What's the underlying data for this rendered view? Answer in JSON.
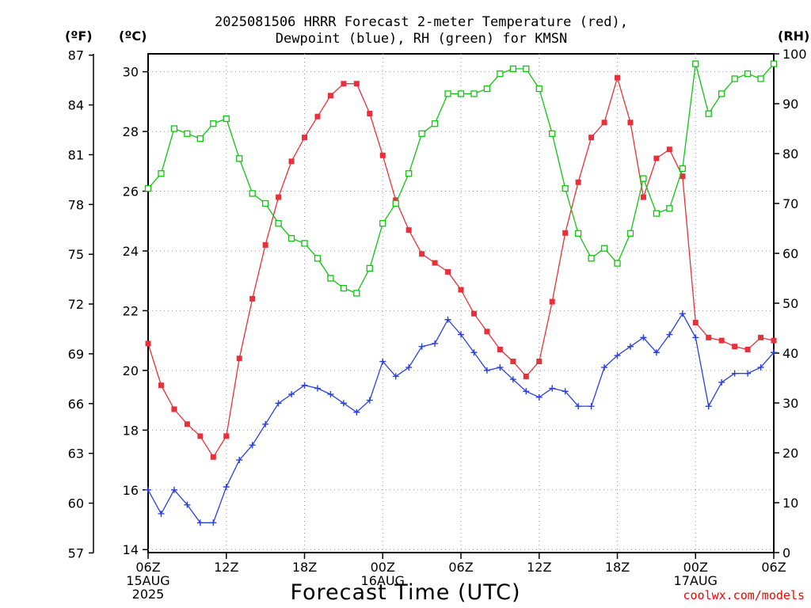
{
  "title_line1": "2025081506 HRRR Forecast 2-meter Temperature (red),",
  "title_line2": "Dewpoint (blue), RH (green) for KMSN",
  "units": {
    "left_f": "(ºF)",
    "left_c": "(ºC)",
    "right_rh": "(RH)"
  },
  "credit": "coolwx.com/models",
  "colors": {
    "temperature": "#e8303a",
    "dewpoint": "#2a3fe0",
    "rh": "#10c410"
  },
  "chart_data": {
    "type": "line",
    "title": "2025081506 HRRR Forecast 2-meter Temperature (red), Dewpoint (blue), RH (green) for KMSN",
    "xlabel": "Forecast Time (UTC)",
    "x": [
      0,
      1,
      2,
      3,
      4,
      5,
      6,
      7,
      8,
      9,
      10,
      11,
      12,
      13,
      14,
      15,
      16,
      17,
      18,
      19,
      20,
      21,
      22,
      23,
      24,
      25,
      26,
      27,
      28,
      29,
      30,
      31,
      32,
      33,
      34,
      35,
      36,
      37,
      38,
      39,
      40,
      41,
      42,
      43,
      44,
      45,
      46,
      47,
      48
    ],
    "x_ticks": [
      {
        "at": 0,
        "lines": [
          "06Z",
          "15AUG",
          "2025"
        ]
      },
      {
        "at": 6,
        "lines": [
          "12Z"
        ]
      },
      {
        "at": 12,
        "lines": [
          "18Z"
        ]
      },
      {
        "at": 18,
        "lines": [
          "00Z",
          "16AUG"
        ]
      },
      {
        "at": 24,
        "lines": [
          "06Z"
        ]
      },
      {
        "at": 30,
        "lines": [
          "12Z"
        ]
      },
      {
        "at": 36,
        "lines": [
          "18Z"
        ]
      },
      {
        "at": 42,
        "lines": [
          "00Z",
          "17AUG"
        ]
      },
      {
        "at": 48,
        "lines": [
          "06Z"
        ]
      }
    ],
    "celsius_axis": {
      "range": [
        13.9,
        30.6
      ],
      "ticks": [
        14,
        16,
        18,
        20,
        22,
        24,
        26,
        28,
        30
      ]
    },
    "fahrenheit_axis": {
      "ticks": [
        57,
        60,
        63,
        66,
        69,
        72,
        75,
        78,
        81,
        84,
        87
      ]
    },
    "rh_axis": {
      "range": [
        0,
        100
      ],
      "ticks": [
        0,
        10,
        20,
        30,
        40,
        50,
        60,
        70,
        80,
        90,
        100
      ]
    },
    "grid": true,
    "series": [
      {
        "name": "Temperature",
        "axis": "celsius",
        "marker": "filled-square",
        "values": [
          20.9,
          19.5,
          18.7,
          18.2,
          17.8,
          17.1,
          17.8,
          20.4,
          22.4,
          24.2,
          25.8,
          27.0,
          27.8,
          28.5,
          29.2,
          29.6,
          29.6,
          28.6,
          27.2,
          25.7,
          24.7,
          23.9,
          23.6,
          23.3,
          22.7,
          21.9,
          21.3,
          20.7,
          20.3,
          19.8,
          20.3,
          22.3,
          24.6,
          26.3,
          27.8,
          28.3,
          29.8,
          28.3,
          25.8,
          27.1,
          27.4,
          26.5,
          21.6,
          21.1,
          21.0,
          20.8,
          20.7,
          21.1,
          21.0
        ]
      },
      {
        "name": "Dewpoint",
        "axis": "celsius",
        "marker": "plus",
        "values": [
          16.0,
          15.2,
          16.0,
          15.5,
          14.9,
          14.9,
          16.1,
          17.0,
          17.5,
          18.2,
          18.9,
          19.2,
          19.5,
          19.4,
          19.2,
          18.9,
          18.6,
          19.0,
          20.3,
          19.8,
          20.1,
          20.8,
          20.9,
          21.7,
          21.2,
          20.6,
          20.0,
          20.1,
          19.7,
          19.3,
          19.1,
          19.4,
          19.3,
          18.8,
          18.8,
          20.1,
          20.5,
          20.8,
          21.1,
          20.6,
          21.2,
          21.9,
          21.1,
          18.8,
          19.6,
          19.9,
          19.9,
          20.1,
          20.6
        ]
      },
      {
        "name": "RH",
        "axis": "rh",
        "marker": "open-square",
        "values": [
          73,
          76,
          85,
          84,
          83,
          86,
          87,
          79,
          72,
          70,
          66,
          63,
          62,
          59,
          55,
          53,
          52,
          57,
          66,
          70,
          76,
          84,
          86,
          92,
          92,
          92,
          93,
          96,
          97,
          97,
          93,
          84,
          73,
          64,
          59,
          61,
          58,
          64,
          75,
          68,
          69,
          77,
          98,
          88,
          92,
          95,
          96,
          95,
          98
        ]
      }
    ]
  }
}
